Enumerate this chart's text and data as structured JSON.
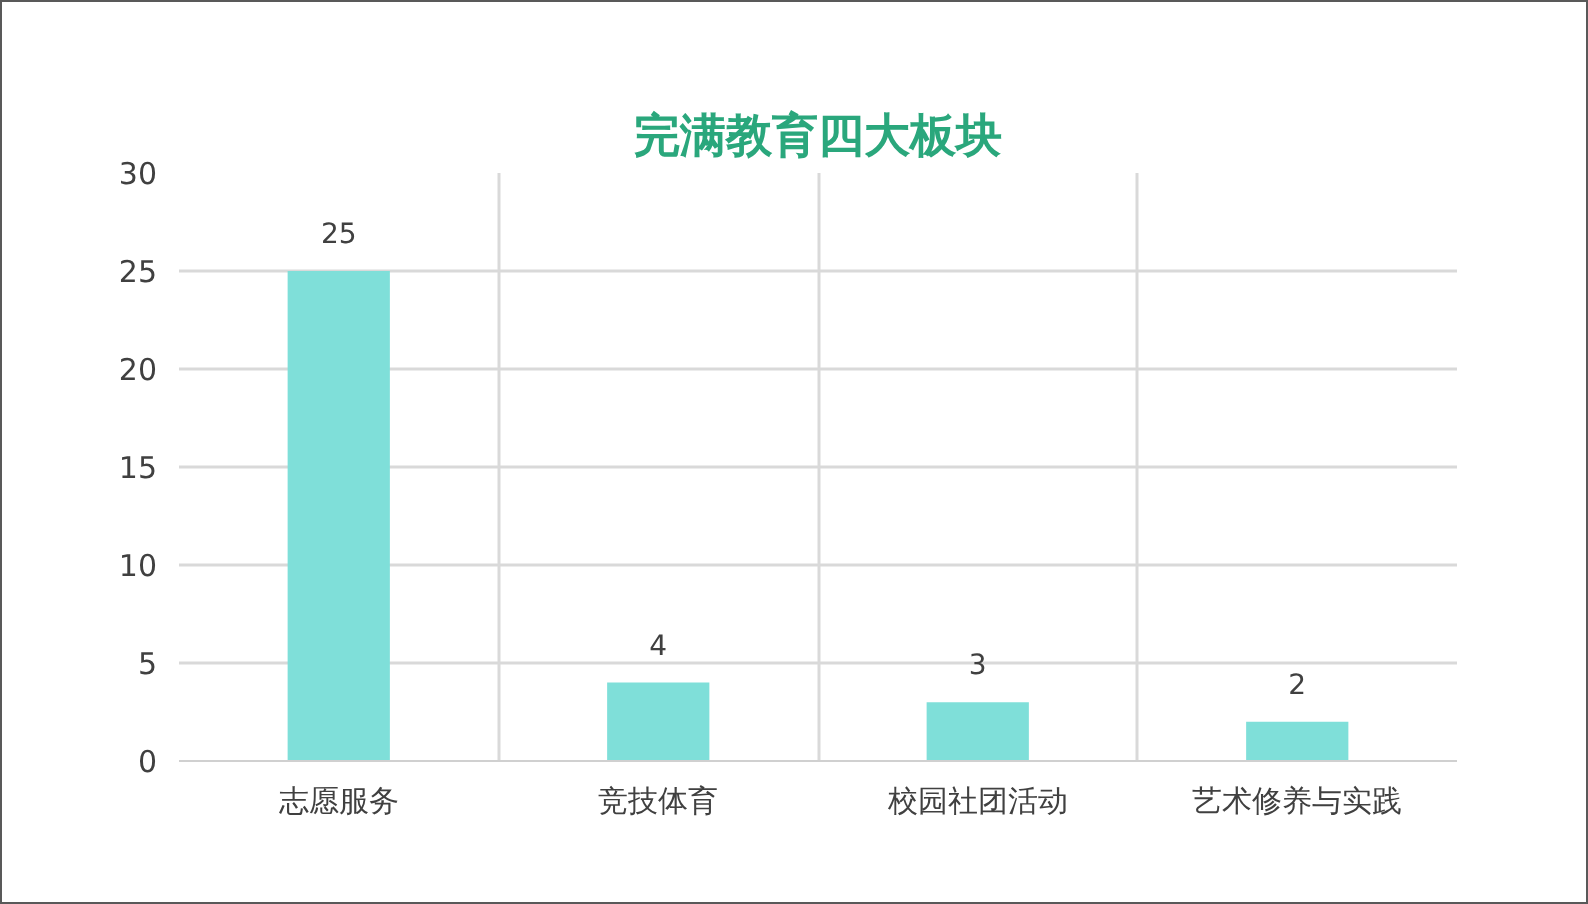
{
  "chart_data": {
    "type": "bar",
    "title": "完满教育四大板块",
    "categories": [
      "志愿服务",
      "竞技体育",
      "校园社团活动",
      "艺术修养与实践"
    ],
    "values": [
      25,
      4,
      3,
      2
    ],
    "color": "#7fdfd9",
    "ylim": [
      0,
      30
    ],
    "yticks": [
      0,
      5,
      10,
      15,
      20,
      25,
      30
    ],
    "grid": true,
    "data_labels": true
  }
}
